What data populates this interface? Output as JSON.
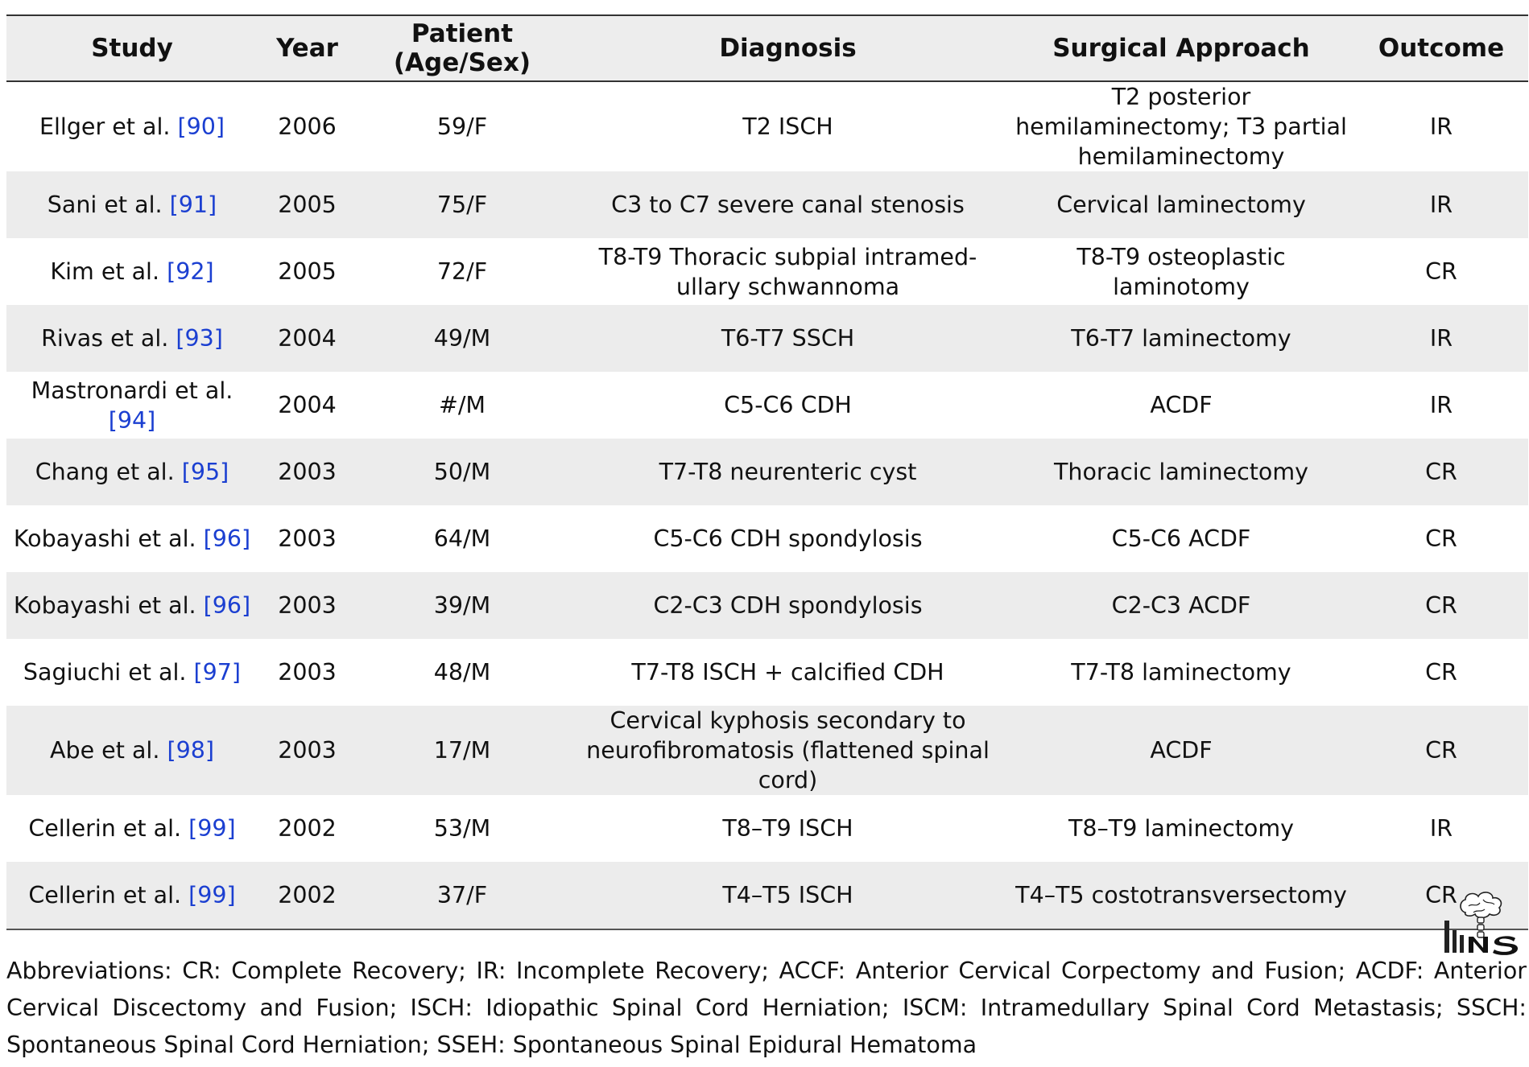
{
  "table": {
    "headers": [
      "Study",
      "Year",
      "Patient (Age/Sex)",
      "Diagnosis",
      "Surgical Approach",
      "Outcome"
    ],
    "rows": [
      {
        "study": "Ellger et al.",
        "ref": "[90]",
        "year": "2006",
        "patient": "59/F",
        "diagnosis": "T2 ISCH",
        "surgical_approach": "T2 posterior hemilaminectomy; T3 partial hemilaminectomy",
        "outcome": "IR"
      },
      {
        "study": "Sani et al.",
        "ref": "[91]",
        "year": "2005",
        "patient": "75/F",
        "diagnosis": "C3 to C7 severe canal stenosis",
        "surgical_approach": "Cervical laminectomy",
        "outcome": "IR"
      },
      {
        "study": "Kim et al.",
        "ref": "[92]",
        "year": "2005",
        "patient": "72/F",
        "diagnosis": "T8-T9 Thoracic subpial intramed-ullary schwannoma",
        "surgical_approach": "T8-T9 osteoplastic laminotomy",
        "outcome": "CR"
      },
      {
        "study": "Rivas et al.",
        "ref": "[93]",
        "year": "2004",
        "patient": "49/M",
        "diagnosis": "T6-T7 SSCH",
        "surgical_approach": "T6-T7 laminectomy",
        "outcome": "IR"
      },
      {
        "study": "Mastronardi et al.",
        "ref": "[94]",
        "year": "2004",
        "patient": "#/M",
        "diagnosis": "C5-C6 CDH",
        "surgical_approach": "ACDF",
        "outcome": "IR"
      },
      {
        "study": "Chang et al.",
        "ref": "[95]",
        "year": "2003",
        "patient": "50/M",
        "diagnosis": "T7-T8 neurenteric cyst",
        "surgical_approach": "Thoracic laminectomy",
        "outcome": "CR"
      },
      {
        "study": "Kobayashi et al.",
        "ref": "[96]",
        "year": "2003",
        "patient": "64/M",
        "diagnosis": "C5-C6 CDH spondylosis",
        "surgical_approach": "C5-C6 ACDF",
        "outcome": "CR"
      },
      {
        "study": "Kobayashi et al.",
        "ref": "[96]",
        "year": "2003",
        "patient": "39/M",
        "diagnosis": "C2-C3 CDH spondylosis",
        "surgical_approach": "C2-C3 ACDF",
        "outcome": "CR"
      },
      {
        "study": "Sagiuchi et al.",
        "ref": "[97]",
        "year": "2003",
        "patient": "48/M",
        "diagnosis": "T7-T8 ISCH + calcified CDH",
        "surgical_approach": "T7-T8 laminectomy",
        "outcome": "CR"
      },
      {
        "study": "Abe et al.",
        "ref": "[98]",
        "year": "2003",
        "patient": "17/M",
        "diagnosis": "Cervical kyphosis secondary to neurofibromatosis (flattened spinal cord)",
        "surgical_approach": "ACDF",
        "outcome": "CR"
      },
      {
        "study": "Cellerin et al.",
        "ref": "[99]",
        "year": "2002",
        "patient": "53/M",
        "diagnosis": "T8–T9 ISCH",
        "surgical_approach": "T8–T9 laminectomy",
        "outcome": "IR"
      },
      {
        "study": "Cellerin et al.",
        "ref": "[99]",
        "year": "2002",
        "patient": "37/F",
        "diagnosis": "T4–T5 ISCH",
        "surgical_approach": "T4–T5 costotransversectomy",
        "outcome": "CR"
      }
    ]
  },
  "logo": {
    "text": "INS",
    "icon": "brain-spine-logo-icon"
  },
  "footnote": "Abbreviations: CR: Complete Recovery; IR: Incomplete Recovery; ACCF: Anterior Cervical Corpectomy and Fusion; ACDF: Anterior Cervical Discectomy and Fusion; ISCH: Idiopathic Spinal Cord Herniation; ISCM: Intramedullary Spinal Cord Metastasis; SSCH: Spontaneous Spinal Cord Herniation; SSEH: Spontaneous Spinal Epidural Hematoma",
  "colors": {
    "header_bg": "#ededed",
    "stripe_bg": "#ececec",
    "ref_link": "#1b3fd1",
    "rule": "#333333"
  }
}
